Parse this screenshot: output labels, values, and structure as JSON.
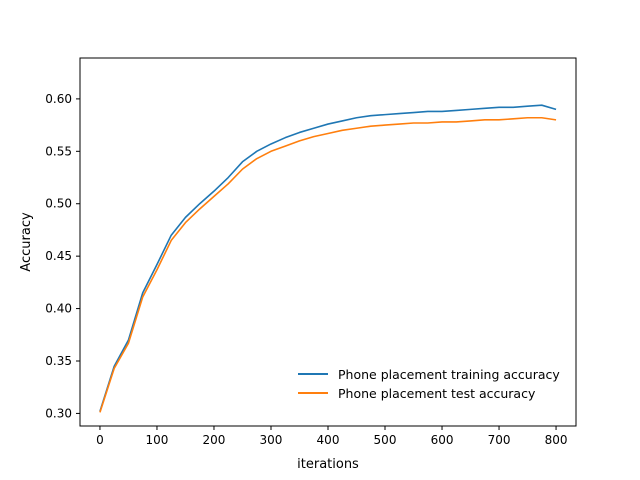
{
  "chart_data": {
    "type": "line",
    "title": "",
    "xlabel": "iterations",
    "ylabel": "Accuracy",
    "xlim": [
      -35,
      835
    ],
    "ylim": [
      0.288,
      0.639
    ],
    "xticks": [
      0,
      100,
      200,
      300,
      400,
      500,
      600,
      700,
      800
    ],
    "yticks": [
      0.3,
      0.35,
      0.4,
      0.45,
      0.5,
      0.55,
      0.6
    ],
    "x_tick_labels": [
      "0",
      "100",
      "200",
      "300",
      "400",
      "500",
      "600",
      "700",
      "800"
    ],
    "y_tick_labels": [
      "0.30",
      "0.35",
      "0.40",
      "0.45",
      "0.50",
      "0.55",
      "0.60"
    ],
    "grid": false,
    "legend_position": "lower-right",
    "x": [
      0,
      25,
      50,
      75,
      100,
      125,
      150,
      175,
      200,
      225,
      250,
      275,
      300,
      325,
      350,
      375,
      400,
      425,
      450,
      475,
      500,
      525,
      550,
      575,
      600,
      625,
      650,
      675,
      700,
      725,
      750,
      775,
      800
    ],
    "series": [
      {
        "name": "Phone placement training accuracy",
        "color": "#1f77b4",
        "values": [
          0.302,
          0.345,
          0.37,
          0.415,
          0.442,
          0.47,
          0.487,
          0.5,
          0.512,
          0.525,
          0.54,
          0.55,
          0.557,
          0.563,
          0.568,
          0.572,
          0.576,
          0.579,
          0.582,
          0.584,
          0.585,
          0.586,
          0.587,
          0.588,
          0.588,
          0.589,
          0.59,
          0.591,
          0.592,
          0.592,
          0.593,
          0.594,
          0.59
        ]
      },
      {
        "name": "Phone placement test accuracy",
        "color": "#ff7f0e",
        "values": [
          0.301,
          0.343,
          0.367,
          0.411,
          0.437,
          0.465,
          0.482,
          0.495,
          0.507,
          0.519,
          0.533,
          0.543,
          0.55,
          0.555,
          0.56,
          0.564,
          0.567,
          0.57,
          0.572,
          0.574,
          0.575,
          0.576,
          0.577,
          0.577,
          0.578,
          0.578,
          0.579,
          0.58,
          0.58,
          0.581,
          0.582,
          0.582,
          0.58
        ]
      }
    ]
  }
}
